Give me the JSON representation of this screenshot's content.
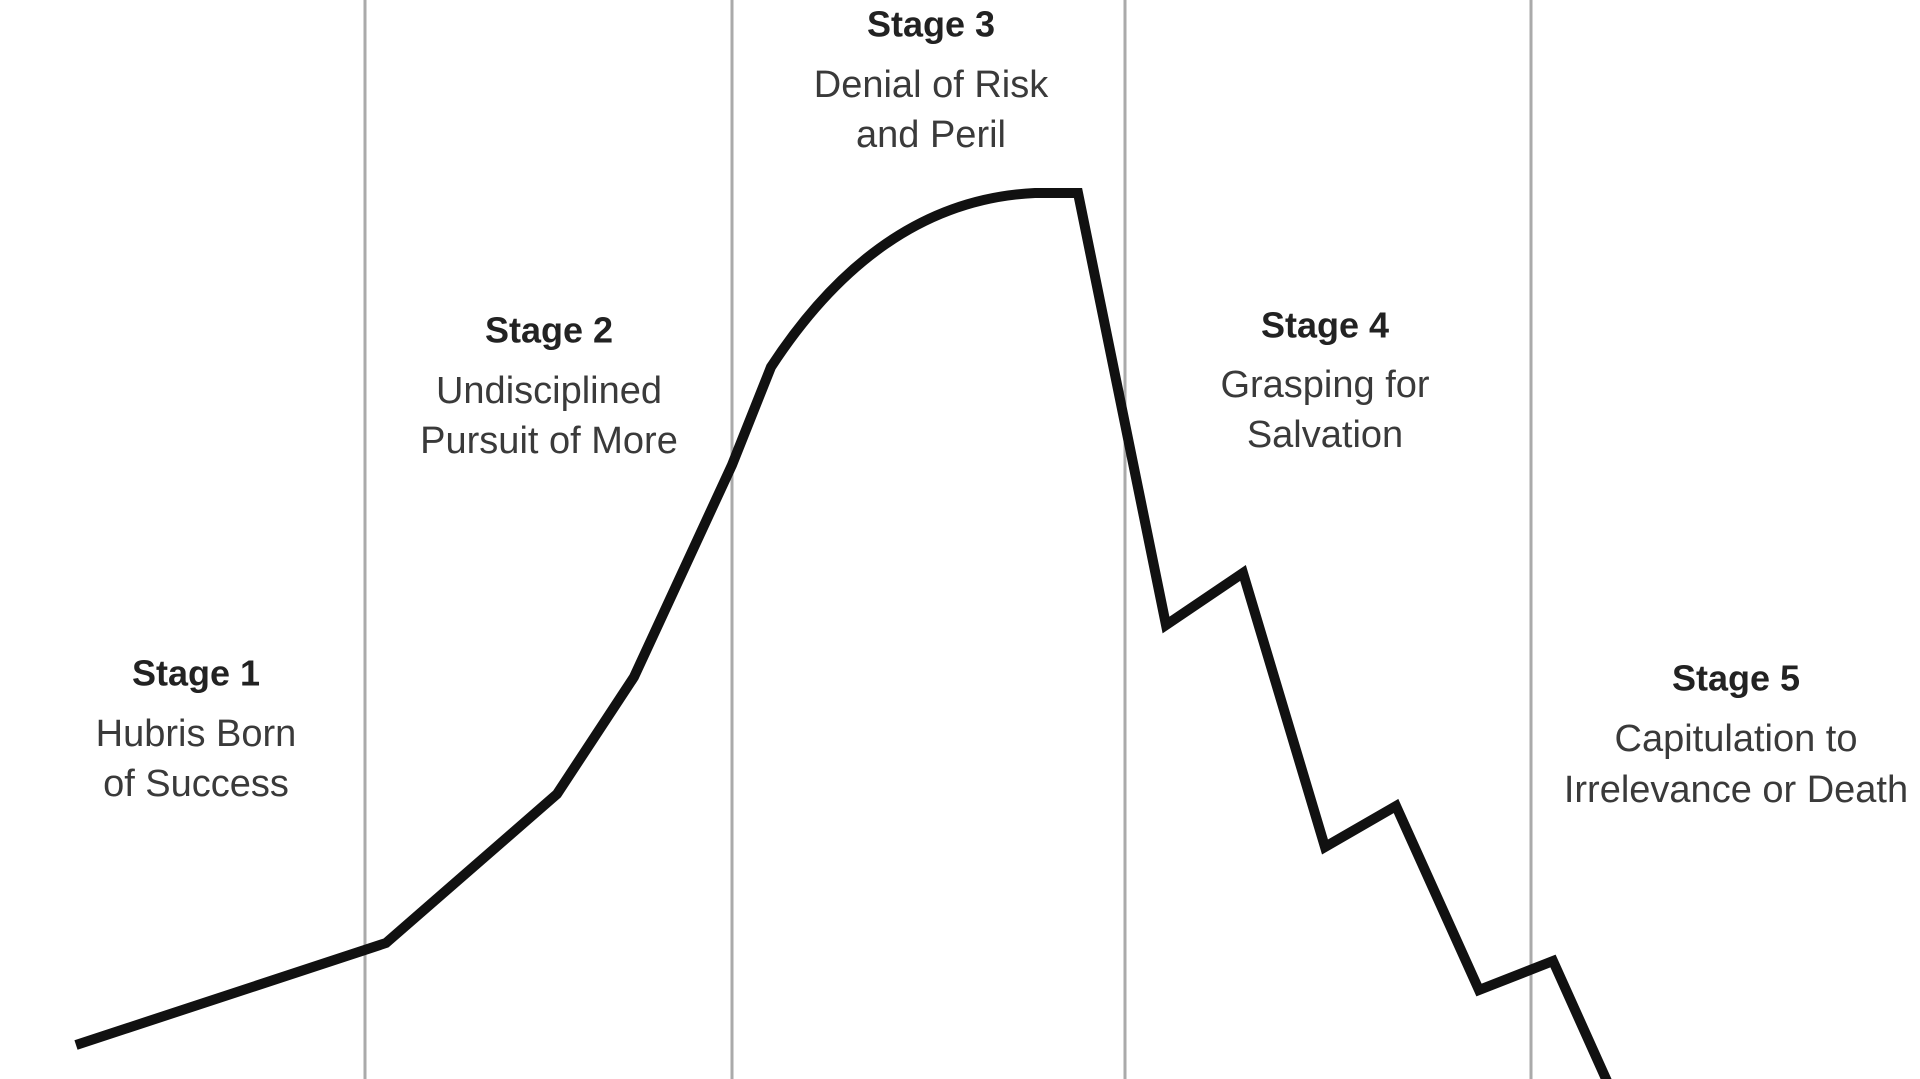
{
  "stages": [
    {
      "label": "Stage 1",
      "description": [
        "Hubris Born",
        "of Success"
      ]
    },
    {
      "label": "Stage 2",
      "description": [
        "Undisciplined",
        "Pursuit of More"
      ]
    },
    {
      "label": "Stage 3",
      "description": [
        "Denial of Risk",
        "and Peril"
      ]
    },
    {
      "label": "Stage 4",
      "description": [
        "Grasping for",
        "Salvation"
      ]
    },
    {
      "label": "Stage 5",
      "description": [
        "Capitulation to",
        "Irrelevance or Death"
      ]
    }
  ]
}
